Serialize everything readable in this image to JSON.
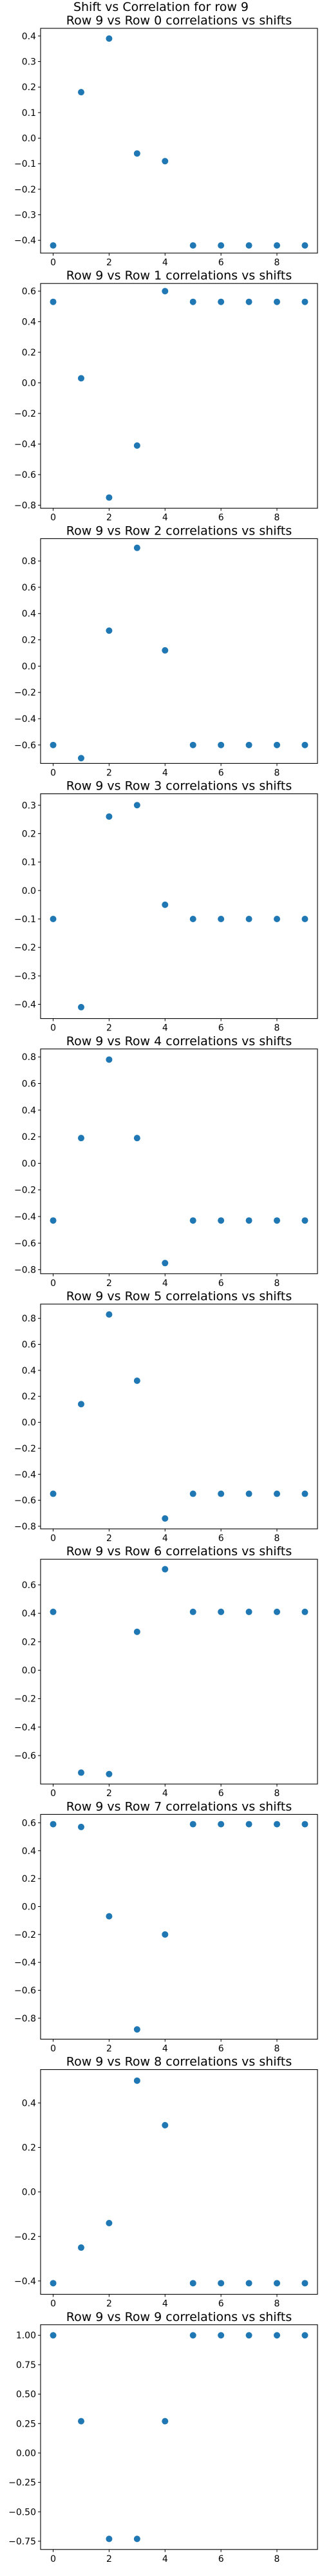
{
  "figure": {
    "suptitle": "Shift vs Correlation for row 9"
  },
  "style": {
    "marker_color": "#1f77b4"
  },
  "chart_data": [
    {
      "type": "scatter",
      "title": "Row 9 vs Row 0 correlations vs shifts",
      "x": [
        0,
        1,
        2,
        3,
        4,
        5,
        6,
        7,
        8,
        9
      ],
      "y": [
        -0.42,
        0.18,
        0.39,
        -0.06,
        -0.09,
        -0.42,
        -0.42,
        -0.42,
        -0.42,
        -0.42
      ],
      "xlim": [
        -0.45,
        9.45
      ],
      "ylim": [
        -0.45,
        0.43
      ],
      "xticks": [
        0,
        2,
        4,
        6,
        8
      ],
      "yticks": [
        -0.4,
        -0.3,
        -0.2,
        -0.1,
        0.0,
        0.1,
        0.2,
        0.3,
        0.4
      ],
      "yticklabels": [
        "−0.4",
        "−0.3",
        "−0.2",
        "−0.1",
        "0.0",
        "0.1",
        "0.2",
        "0.3",
        "0.4"
      ]
    },
    {
      "type": "scatter",
      "title": "Row 9 vs Row 1 correlations vs shifts",
      "x": [
        0,
        1,
        2,
        3,
        4,
        5,
        6,
        7,
        8,
        9
      ],
      "y": [
        0.53,
        0.03,
        -0.75,
        -0.41,
        0.6,
        0.53,
        0.53,
        0.53,
        0.53,
        0.53
      ],
      "xlim": [
        -0.45,
        9.45
      ],
      "ylim": [
        -0.82,
        0.65
      ],
      "xticks": [
        0,
        2,
        4,
        6,
        8
      ],
      "yticks": [
        -0.8,
        -0.6,
        -0.4,
        -0.2,
        0.0,
        0.2,
        0.4,
        0.6
      ],
      "yticklabels": [
        "−0.8",
        "−0.6",
        "−0.4",
        "−0.2",
        "0.0",
        "0.2",
        "0.4",
        "0.6"
      ]
    },
    {
      "type": "scatter",
      "title": "Row 9 vs Row 2 correlations vs shifts",
      "x": [
        0,
        1,
        2,
        3,
        4,
        5,
        6,
        7,
        8,
        9
      ],
      "y": [
        -0.6,
        -0.7,
        0.27,
        0.9,
        0.12,
        -0.6,
        -0.6,
        -0.6,
        -0.6,
        -0.6
      ],
      "xlim": [
        -0.45,
        9.45
      ],
      "ylim": [
        -0.74,
        0.97
      ],
      "xticks": [
        0,
        2,
        4,
        6,
        8
      ],
      "yticks": [
        -0.6,
        -0.4,
        -0.2,
        0.0,
        0.2,
        0.4,
        0.6,
        0.8
      ],
      "yticklabels": [
        "−0.6",
        "−0.4",
        "−0.2",
        "0.0",
        "0.2",
        "0.4",
        "0.6",
        "0.8"
      ]
    },
    {
      "type": "scatter",
      "title": "Row 9 vs Row 3 correlations vs shifts",
      "x": [
        0,
        1,
        2,
        3,
        4,
        5,
        6,
        7,
        8,
        9
      ],
      "y": [
        -0.1,
        -0.41,
        0.26,
        0.3,
        -0.05,
        -0.1,
        -0.1,
        -0.1,
        -0.1,
        -0.1
      ],
      "xlim": [
        -0.45,
        9.45
      ],
      "ylim": [
        -0.45,
        0.34
      ],
      "xticks": [
        0,
        2,
        4,
        6,
        8
      ],
      "yticks": [
        -0.4,
        -0.3,
        -0.2,
        -0.1,
        0.0,
        0.1,
        0.2,
        0.3
      ],
      "yticklabels": [
        "−0.4",
        "−0.3",
        "−0.2",
        "−0.1",
        "0.0",
        "0.1",
        "0.2",
        "0.3"
      ]
    },
    {
      "type": "scatter",
      "title": "Row 9 vs Row 4 correlations vs shifts",
      "x": [
        0,
        1,
        2,
        3,
        4,
        5,
        6,
        7,
        8,
        9
      ],
      "y": [
        -0.43,
        0.19,
        0.78,
        0.19,
        -0.75,
        -0.43,
        -0.43,
        -0.43,
        -0.43,
        -0.43
      ],
      "xlim": [
        -0.45,
        9.45
      ],
      "ylim": [
        -0.83,
        0.86
      ],
      "xticks": [
        0,
        2,
        4,
        6,
        8
      ],
      "yticks": [
        -0.8,
        -0.6,
        -0.4,
        -0.2,
        0.0,
        0.2,
        0.4,
        0.6,
        0.8
      ],
      "yticklabels": [
        "−0.8",
        "−0.6",
        "−0.4",
        "−0.2",
        "0.0",
        "0.2",
        "0.4",
        "0.6",
        "0.8"
      ]
    },
    {
      "type": "scatter",
      "title": "Row 9 vs Row 5 correlations vs shifts",
      "x": [
        0,
        1,
        2,
        3,
        4,
        5,
        6,
        7,
        8,
        9
      ],
      "y": [
        -0.55,
        0.14,
        0.83,
        0.32,
        -0.74,
        -0.55,
        -0.55,
        -0.55,
        -0.55,
        -0.55
      ],
      "xlim": [
        -0.45,
        9.45
      ],
      "ylim": [
        -0.82,
        0.91
      ],
      "xticks": [
        0,
        2,
        4,
        6,
        8
      ],
      "yticks": [
        -0.8,
        -0.6,
        -0.4,
        -0.2,
        0.0,
        0.2,
        0.4,
        0.6,
        0.8
      ],
      "yticklabels": [
        "−0.8",
        "−0.6",
        "−0.4",
        "−0.2",
        "0.0",
        "0.2",
        "0.4",
        "0.6",
        "0.8"
      ]
    },
    {
      "type": "scatter",
      "title": "Row 9 vs Row 6 correlations vs shifts",
      "x": [
        0,
        1,
        2,
        3,
        4,
        5,
        6,
        7,
        8,
        9
      ],
      "y": [
        0.41,
        -0.72,
        -0.73,
        0.27,
        0.71,
        0.41,
        0.41,
        0.41,
        0.41,
        0.41
      ],
      "xlim": [
        -0.45,
        9.45
      ],
      "ylim": [
        -0.8,
        0.78
      ],
      "xticks": [
        0,
        2,
        4,
        6,
        8
      ],
      "yticks": [
        -0.6,
        -0.4,
        -0.2,
        0.0,
        0.2,
        0.4,
        0.6
      ],
      "yticklabels": [
        "−0.6",
        "−0.4",
        "−0.2",
        "0.0",
        "0.2",
        "0.4",
        "0.6"
      ]
    },
    {
      "type": "scatter",
      "title": "Row 9 vs Row 7 correlations vs shifts",
      "x": [
        0,
        1,
        2,
        3,
        4,
        5,
        6,
        7,
        8,
        9
      ],
      "y": [
        0.59,
        0.57,
        -0.07,
        -0.88,
        -0.2,
        0.59,
        0.59,
        0.59,
        0.59,
        0.59
      ],
      "xlim": [
        -0.45,
        9.45
      ],
      "ylim": [
        -0.95,
        0.66
      ],
      "xticks": [
        0,
        2,
        4,
        6,
        8
      ],
      "yticks": [
        -0.8,
        -0.6,
        -0.4,
        -0.2,
        0.0,
        0.2,
        0.4,
        0.6
      ],
      "yticklabels": [
        "−0.8",
        "−0.6",
        "−0.4",
        "−0.2",
        "0.0",
        "0.2",
        "0.4",
        "0.6"
      ]
    },
    {
      "type": "scatter",
      "title": "Row 9 vs Row 8 correlations vs shifts",
      "x": [
        0,
        1,
        2,
        3,
        4,
        5,
        6,
        7,
        8,
        9
      ],
      "y": [
        -0.41,
        -0.25,
        -0.14,
        0.5,
        0.3,
        -0.41,
        -0.41,
        -0.41,
        -0.41,
        -0.41
      ],
      "xlim": [
        -0.45,
        9.45
      ],
      "ylim": [
        -0.46,
        0.55
      ],
      "xticks": [
        0,
        2,
        4,
        6,
        8
      ],
      "yticks": [
        -0.4,
        -0.2,
        0.0,
        0.2,
        0.4
      ],
      "yticklabels": [
        "−0.4",
        "−0.2",
        "0.0",
        "0.2",
        "0.4"
      ]
    },
    {
      "type": "scatter",
      "title": "Row 9 vs Row 9 correlations vs shifts",
      "x": [
        0,
        1,
        2,
        3,
        4,
        5,
        6,
        7,
        8,
        9
      ],
      "y": [
        1.0,
        0.27,
        -0.73,
        -0.73,
        0.27,
        1.0,
        1.0,
        1.0,
        1.0,
        1.0
      ],
      "xlim": [
        -0.45,
        9.45
      ],
      "ylim": [
        -0.82,
        1.09
      ],
      "xticks": [
        0,
        2,
        4,
        6,
        8
      ],
      "yticks": [
        -0.75,
        -0.5,
        -0.25,
        0.0,
        0.25,
        0.5,
        0.75,
        1.0
      ],
      "yticklabels": [
        "−0.75",
        "−0.50",
        "−0.25",
        "0.00",
        "0.25",
        "0.50",
        "0.75",
        "1.00"
      ]
    }
  ]
}
